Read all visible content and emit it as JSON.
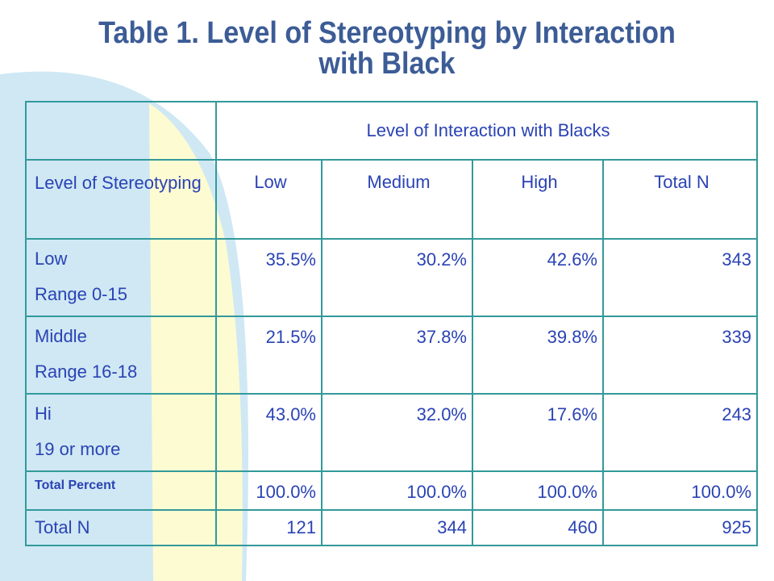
{
  "title": {
    "line1": "Table 1.  Level of Stereotyping by Interaction",
    "line2": "with Black"
  },
  "table": {
    "group_header": "Level of Interaction with Blacks",
    "row_header": "Level of Stereotyping",
    "columns": [
      "Low",
      "Medium",
      "High",
      "Total N"
    ],
    "rows": [
      {
        "label1": "Low",
        "label2": "Range 0-15",
        "values": [
          "35.5%",
          "30.2%",
          "42.6%",
          "343"
        ]
      },
      {
        "label1": "Middle",
        "label2": "Range 16-18",
        "values": [
          "21.5%",
          "37.8%",
          "39.8%",
          "339"
        ]
      },
      {
        "label1": "Hi",
        "label2": "19 or more",
        "values": [
          "43.0%",
          "32.0%",
          "17.6%",
          "243"
        ]
      }
    ],
    "total_percent": {
      "label": "Total Percent",
      "values": [
        "100.0%",
        "100.0%",
        "100.0%",
        "100.0%"
      ]
    },
    "total_n": {
      "label": "Total N",
      "values": [
        "121",
        "344",
        "460",
        "925"
      ]
    }
  },
  "colors": {
    "title": "#3c5c96",
    "text": "#2a43b4",
    "border": "#33999a",
    "left_shape": "#cfe8f4",
    "right_shape": "#fdfbd2"
  }
}
